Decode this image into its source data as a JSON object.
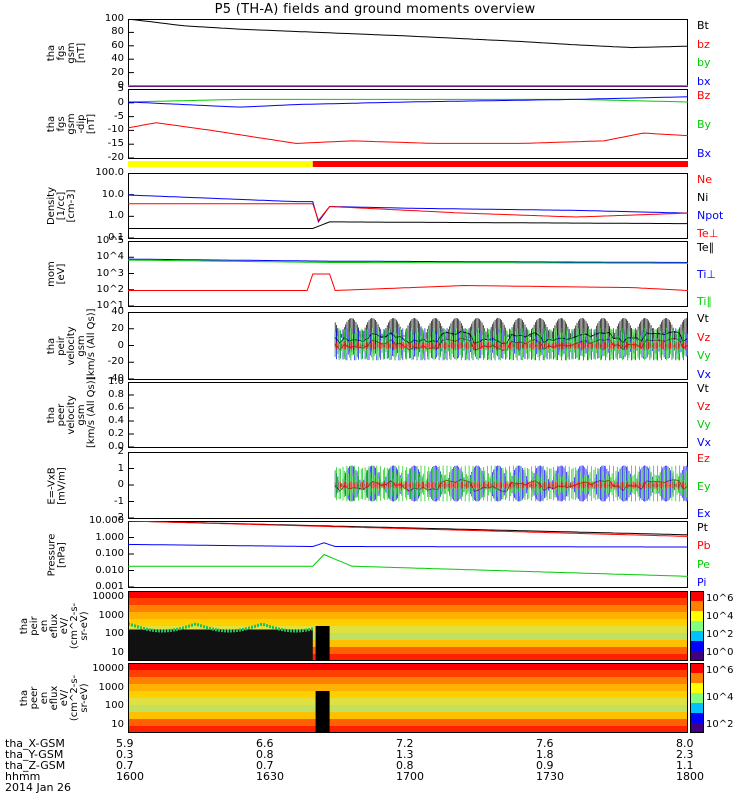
{
  "title": "P5 (TH-A) fields and ground moments overview",
  "chart_data": {
    "type": "line",
    "x_axis": {
      "tick_labels_hhmm": [
        "1600",
        "1630",
        "1700",
        "1730",
        "1800"
      ],
      "date": "2014 Jan 26",
      "rows": [
        {
          "label": "tha_X-GSM",
          "values": [
            "5.9",
            "6.6",
            "7.2",
            "7.6",
            "8.0"
          ]
        },
        {
          "label": "tha_Y-GSM",
          "values": [
            "0.3",
            "0.8",
            "1.3",
            "1.8",
            "2.3"
          ]
        },
        {
          "label": "tha_Z-GSM",
          "values": [
            "0.7",
            "0.7",
            "0.8",
            "0.9",
            "1.1"
          ]
        },
        {
          "label": "hhmm",
          "values": [
            "1600",
            "1630",
            "1700",
            "1730",
            "1800"
          ]
        }
      ]
    },
    "panels": [
      {
        "id": "p1",
        "ylabel": "tha\nfgs\ngsm\n[nT]",
        "ylim": [
          0,
          100
        ],
        "ticks": [
          "100",
          "80",
          "60",
          "40",
          "20",
          "0"
        ],
        "legend": [
          {
            "name": "Bt",
            "color": "#000000"
          },
          {
            "name": "bz",
            "color": "#ff0000"
          },
          {
            "name": "by",
            "color": "#00cc00"
          },
          {
            "name": "bx",
            "color": "#0000ff"
          }
        ],
        "series": [
          {
            "name": "Bt",
            "color": "#000000",
            "x": [
              0,
              0.1,
              0.2,
              0.35,
              0.5,
              0.6,
              0.7,
              0.8,
              0.9,
              1.0
            ],
            "y": [
              100,
              90,
              85,
              80,
              75,
              71,
              67,
              62,
              58,
              60
            ]
          },
          {
            "name": "bz",
            "color": "#ff0000",
            "x": [
              0,
              1.0
            ],
            "y": [
              1,
              1
            ]
          },
          {
            "name": "by",
            "color": "#00cc00",
            "x": [
              0,
              1.0
            ],
            "y": [
              2,
              2
            ]
          },
          {
            "name": "bx",
            "color": "#0000ff",
            "x": [
              0,
              1.0
            ],
            "y": [
              0,
              0
            ]
          }
        ]
      },
      {
        "id": "p2",
        "ylabel": "tha\nfgs\ngsm\n-dip\n[nT]",
        "ylim": [
          -22,
          5
        ],
        "ticks": [
          "5",
          "0",
          "-5",
          "-10",
          "-15",
          "-20"
        ],
        "legend": [
          {
            "name": "Bz",
            "color": "#ff0000"
          },
          {
            "name": "By",
            "color": "#00cc00"
          },
          {
            "name": "Bx",
            "color": "#0000ff"
          }
        ],
        "series": [
          {
            "name": "Bz",
            "color": "#ff0000",
            "x": [
              0,
              0.05,
              0.15,
              0.3,
              0.4,
              0.55,
              0.7,
              0.85,
              0.92,
              1.0
            ],
            "y": [
              -10,
              -8,
              -11,
              -16,
              -15,
              -16,
              -16,
              -15,
              -12,
              -13
            ]
          },
          {
            "name": "By",
            "color": "#00cc00",
            "x": [
              0,
              0.2,
              0.5,
              0.8,
              1.0
            ],
            "y": [
              0,
              1,
              1,
              1,
              0
            ]
          },
          {
            "name": "Bx",
            "color": "#0000ff",
            "x": [
              0,
              0.2,
              0.3,
              0.5,
              0.8,
              1.0
            ],
            "y": [
              0,
              -2,
              -1,
              0,
              1,
              2
            ]
          }
        ]
      },
      {
        "id": "p3",
        "ylabel": "Density\n[1/cc]\n[cm-3]",
        "ylim": [
          0.1,
          100
        ],
        "ticks": [
          "100.0",
          "10.0",
          "1.0",
          "0.1"
        ],
        "legend": [
          {
            "name": "Ne",
            "color": "#ff0000"
          },
          {
            "name": "Ni",
            "color": "#000000"
          },
          {
            "name": "Npot",
            "color": "#0000ff"
          },
          {
            "name": "Te⊥",
            "color": "#ff0000"
          }
        ],
        "series": [
          {
            "name": "Npot",
            "color": "#0000ff",
            "x": [
              0,
              0.3,
              0.33,
              0.34,
              0.36,
              0.5,
              0.8,
              1.0
            ],
            "y": [
              10,
              5,
              5,
              0.6,
              3,
              2.5,
              2,
              1.5
            ]
          },
          {
            "name": "Ne",
            "color": "#ff0000",
            "x": [
              0,
              0.33,
              0.34,
              0.36,
              0.6,
              0.8,
              1.0
            ],
            "y": [
              4,
              4,
              0.7,
              3,
              1.5,
              1,
              1.5
            ]
          },
          {
            "name": "Ni",
            "color": "#000000",
            "x": [
              0,
              0.33,
              0.36,
              1.0
            ],
            "y": [
              0.3,
              0.3,
              0.6,
              0.5
            ]
          }
        ]
      },
      {
        "id": "p4",
        "ylabel": "mom\n[eV]",
        "ylim": [
          10,
          100000
        ],
        "ticks": [
          "10^5",
          "10^4",
          "10^3",
          "10^2",
          "10^1"
        ],
        "legend": [
          {
            "name": "Te∥",
            "color": "#000000"
          },
          {
            "name": "Ti⊥",
            "color": "#0000ff"
          },
          {
            "name": "Ti∥",
            "color": "#00cc00"
          }
        ],
        "series": [
          {
            "name": "Te⊥",
            "color": "#ff0000",
            "x": [
              0,
              0.32,
              0.33,
              0.36,
              0.37,
              0.6,
              0.9,
              1.0
            ],
            "y": [
              100,
              100,
              1000,
              1000,
              100,
              200,
              150,
              100
            ]
          },
          {
            "name": "Ti⊥",
            "color": "#0000ff",
            "x": [
              0,
              0.36,
              1.0
            ],
            "y": [
              8000,
              6000,
              5000
            ]
          },
          {
            "name": "Ti∥",
            "color": "#00cc00",
            "x": [
              0,
              0.36,
              1.0
            ],
            "y": [
              7000,
              5000,
              4500
            ]
          }
        ]
      },
      {
        "id": "p5",
        "ylabel": "tha\npeir\nvelocity\ngsm\n[km/s (All Qs)]",
        "ylim": [
          -40,
          40
        ],
        "ticks": [
          "40",
          "20",
          "0",
          "-20",
          "-40"
        ],
        "legend": [
          {
            "name": "Vt",
            "color": "#000000"
          },
          {
            "name": "Vz",
            "color": "#ff0000"
          },
          {
            "name": "Vy",
            "color": "#00cc00"
          },
          {
            "name": "Vx",
            "color": "#0000ff"
          }
        ],
        "series": [
          {
            "name": "Vt",
            "color": "#000000",
            "x": [
              0.37,
              1.0
            ],
            "y": [
              10,
              10
            ]
          },
          {
            "name": "Vz",
            "color": "#ff0000",
            "x": [
              0.37,
              1.0
            ],
            "y": [
              2,
              2
            ]
          }
        ]
      },
      {
        "id": "p6",
        "ylabel": "tha\npeer\nvelocity\ngsm\n[km/s (All Qs)]",
        "ylim": [
          0,
          1
        ],
        "ticks": [
          "1.0",
          "0.8",
          "0.6",
          "0.4",
          "0.2",
          "0.0"
        ],
        "legend": [
          {
            "name": "Vt",
            "color": "#000000"
          },
          {
            "name": "Vz",
            "color": "#ff0000"
          },
          {
            "name": "Vy",
            "color": "#00cc00"
          },
          {
            "name": "Vx",
            "color": "#0000ff"
          }
        ],
        "series": []
      },
      {
        "id": "p7",
        "ylabel": "E=-VxB\n[mV/m]",
        "ylim": [
          -2,
          2
        ],
        "ticks": [
          "2",
          "1",
          "0",
          "-1",
          "-2"
        ],
        "legend": [
          {
            "name": "Ez",
            "color": "#ff0000"
          },
          {
            "name": "Ey",
            "color": "#00cc00"
          },
          {
            "name": "Ex",
            "color": "#0000ff"
          }
        ],
        "series": [
          {
            "name": "Ez",
            "color": "#ff0000",
            "x": [
              0.37,
              1.0
            ],
            "y": [
              0,
              0
            ]
          }
        ]
      },
      {
        "id": "p8",
        "ylabel": "Pressure\n[nPa]",
        "ylim": [
          0.001,
          10
        ],
        "ticks": [
          "10.000",
          "1.000",
          "0.100",
          "0.010",
          "0.001"
        ],
        "legend": [
          {
            "name": "Pt",
            "color": "#000000"
          },
          {
            "name": "Pb",
            "color": "#ff0000"
          },
          {
            "name": "Pe",
            "color": "#00cc00"
          },
          {
            "name": "Pi",
            "color": "#0000ff"
          }
        ],
        "series": [
          {
            "name": "Pt",
            "color": "#000000",
            "x": [
              0,
              1.0
            ],
            "y": [
              10,
              1.5
            ]
          },
          {
            "name": "Pb",
            "color": "#ff0000",
            "x": [
              0,
              1.0
            ],
            "y": [
              10,
              1.2
            ]
          },
          {
            "name": "Pi",
            "color": "#0000ff",
            "x": [
              0,
              0.33,
              0.35,
              0.37,
              1.0
            ],
            "y": [
              0.4,
              0.3,
              0.5,
              0.3,
              0.28
            ]
          },
          {
            "name": "Pe",
            "color": "#00cc00",
            "x": [
              0,
              0.33,
              0.35,
              0.4,
              1.0
            ],
            "y": [
              0.02,
              0.02,
              0.1,
              0.02,
              0.005
            ]
          }
        ]
      }
    ],
    "spectrograms": [
      {
        "id": "s1",
        "ylabel": "tha\npeir\nen\neflux\neV/\n(cm^2-s-\nsr-eV)",
        "ticks": [
          "10000",
          "1000",
          "100",
          "10"
        ],
        "colorbar_ticks": [
          "10^6",
          "10^4",
          "10^2",
          "10^0"
        ]
      },
      {
        "id": "s2",
        "ylabel": "tha\npeer\nen\neflux\neV/\n(cm^2-s-\nsr-eV)",
        "ticks": [
          "10000",
          "1000",
          "100",
          "10"
        ],
        "colorbar_ticks": [
          "10^6",
          "10^4",
          "10^2"
        ]
      }
    ]
  }
}
